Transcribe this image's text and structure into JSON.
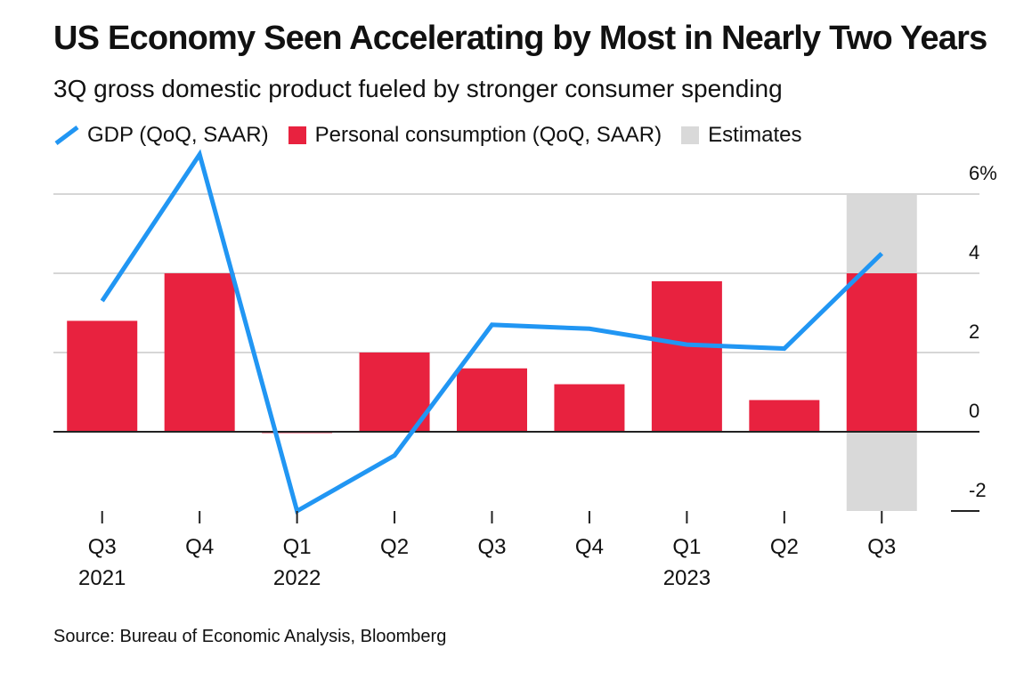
{
  "header": {
    "title": "US Economy Seen Accelerating by Most in Nearly Two Years",
    "subtitle": "3Q gross domestic product fueled by stronger consumer spending"
  },
  "legend": {
    "gdp": "GDP (QoQ, SAAR)",
    "consumption": "Personal consumption (QoQ, SAAR)",
    "estimates": "Estimates"
  },
  "footer": {
    "source": "Source: Bureau of Economic Analysis, Bloomberg"
  },
  "colors": {
    "gdp_line": "#2196f3",
    "consumption_bar": "#e8223f",
    "estimates_band": "#d9d9d9",
    "gridline": "#d6d6d6",
    "zero_line": "#222222"
  },
  "chart_data": {
    "type": "bar",
    "categories": [
      "Q3",
      "Q4",
      "Q1",
      "Q2",
      "Q3",
      "Q4",
      "Q1",
      "Q2",
      "Q3"
    ],
    "year_labels": [
      "2021",
      "",
      "2022",
      "",
      "",
      "",
      "2023",
      "",
      ""
    ],
    "series": [
      {
        "name": "Personal consumption (QoQ, SAAR)",
        "type": "bar",
        "values": [
          2.8,
          4.0,
          0.0,
          2.0,
          1.6,
          1.2,
          3.8,
          0.8,
          4.0
        ]
      },
      {
        "name": "GDP (QoQ, SAAR)",
        "type": "line",
        "values": [
          3.3,
          7.0,
          -2.0,
          -0.6,
          2.7,
          2.6,
          2.2,
          2.1,
          4.5
        ]
      }
    ],
    "estimates_index": [
      8
    ],
    "y_ticks": [
      -2,
      0,
      2,
      4,
      6
    ],
    "y_tick_labels": [
      "-2",
      "0",
      "2",
      "4",
      "6%"
    ],
    "ylim": [
      -2,
      6
    ],
    "grid": true,
    "legend_position": "top-left",
    "y_axis_position": "right"
  }
}
